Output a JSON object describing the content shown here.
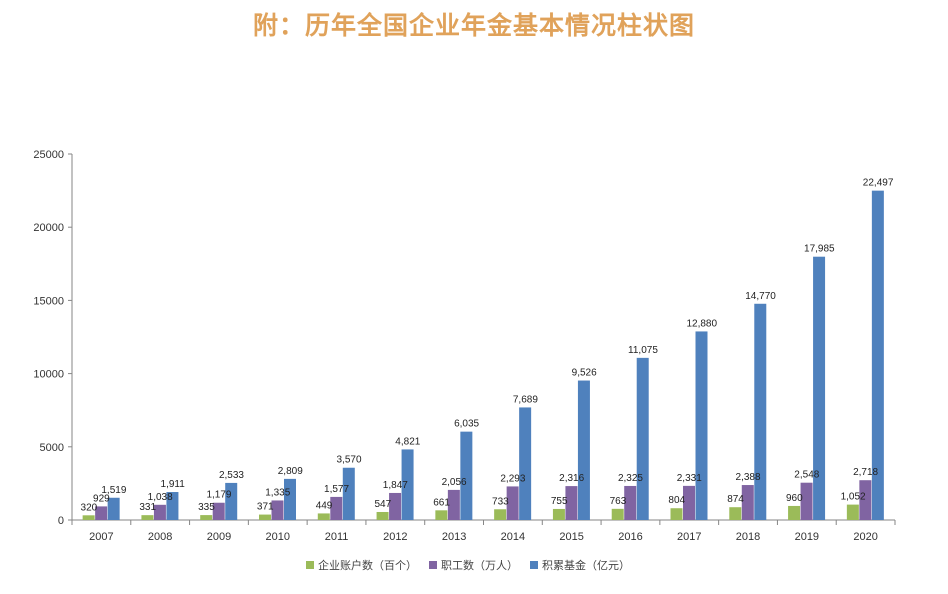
{
  "page_title": "附：历年全国企业年金基本情况柱状图",
  "colors": {
    "title": "#E0A25A",
    "axis": "#868686",
    "series": [
      "#9BBB59",
      "#8064A2",
      "#4F81BD"
    ]
  },
  "chart_data": {
    "type": "bar",
    "title": "",
    "xlabel": "",
    "ylabel": "",
    "ylim": [
      0,
      25000
    ],
    "yticks": [
      0,
      5000,
      10000,
      15000,
      20000,
      25000
    ],
    "legend_position": "bottom",
    "grid": false,
    "categories": [
      "2007",
      "2008",
      "2009",
      "2010",
      "2011",
      "2012",
      "2013",
      "2014",
      "2015",
      "2016",
      "2017",
      "2018",
      "2019",
      "2020"
    ],
    "series": [
      {
        "name": "企业账户数（百个）",
        "values": [
          320,
          331,
          335,
          371,
          449,
          547,
          661,
          733,
          755,
          763,
          804,
          874,
          960,
          1052
        ],
        "labels": [
          "320",
          "331",
          "335",
          "371",
          "449",
          "547",
          "661",
          "733",
          "755",
          "763",
          "804",
          "874",
          "960",
          "1,052"
        ]
      },
      {
        "name": "职工数（万人）",
        "values": [
          929,
          1038,
          1179,
          1335,
          1577,
          1847,
          2056,
          2293,
          2316,
          2325,
          2331,
          2388,
          2548,
          2718
        ],
        "labels": [
          "929",
          "1,038",
          "1,179",
          "1,335",
          "1,577",
          "1,847",
          "2,056",
          "2,293",
          "2,316",
          "2,325",
          "2,331",
          "2,388",
          "2,548",
          "2,718"
        ]
      },
      {
        "name": "积累基金（亿元）",
        "values": [
          1519,
          1911,
          2533,
          2809,
          3570,
          4821,
          6035,
          7689,
          9526,
          11075,
          12880,
          14770,
          17985,
          22497
        ],
        "labels": [
          "1,519",
          "1,911",
          "2,533",
          "2,809",
          "3,570",
          "4,821",
          "6,035",
          "7,689",
          "9,526",
          "11,075",
          "12,880",
          "14,770",
          "17,985",
          "22,497"
        ]
      }
    ]
  }
}
